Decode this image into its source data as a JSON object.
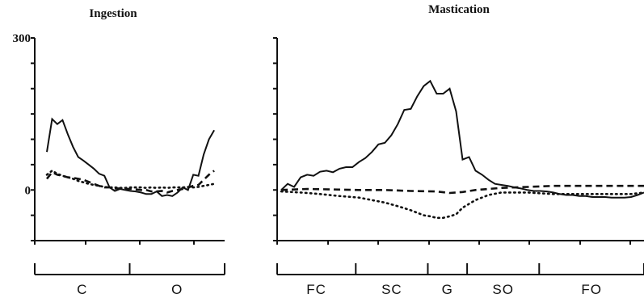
{
  "chart_data": [
    {
      "type": "line",
      "title": "Ingestion",
      "yticks": [
        {
          "value": 300,
          "label": "300"
        },
        {
          "value": 0,
          "label": "0"
        }
      ],
      "ylim": [
        -100,
        300
      ],
      "xlim": [
        0,
        34
      ],
      "phases": [
        {
          "label": "C",
          "start": 0,
          "end": 17
        },
        {
          "label": "O",
          "start": 17,
          "end": 34
        }
      ],
      "series": [
        {
          "style": "solid",
          "x": [
            0,
            1,
            2,
            3,
            4,
            5,
            6,
            7,
            8,
            9,
            10,
            11,
            12,
            13,
            14,
            15,
            16,
            17,
            18,
            19,
            20,
            21,
            22,
            23,
            24,
            25,
            26,
            27,
            28,
            29,
            30,
            31,
            32
          ],
          "values": [
            75,
            140,
            130,
            138,
            110,
            85,
            65,
            58,
            50,
            42,
            32,
            28,
            5,
            -2,
            2,
            0,
            -2,
            -3,
            -5,
            -8,
            -8,
            -3,
            -12,
            -10,
            -12,
            -5,
            5,
            0,
            30,
            28,
            70,
            100,
            118
          ]
        },
        {
          "style": "dashed",
          "x": [
            0,
            1,
            2,
            3,
            4,
            5,
            6,
            7,
            8,
            9,
            10,
            11,
            12,
            13,
            14,
            15,
            16,
            17,
            18,
            19,
            20,
            21,
            22,
            23,
            24,
            25,
            26,
            27,
            28,
            29,
            30,
            31,
            32
          ],
          "values": [
            22,
            35,
            30,
            28,
            25,
            24,
            22,
            20,
            16,
            12,
            8,
            5,
            5,
            3,
            3,
            2,
            2,
            1,
            0,
            0,
            -3,
            -3,
            -2,
            -5,
            -2,
            0,
            2,
            5,
            8,
            10,
            20,
            30,
            38
          ]
        },
        {
          "style": "dotted",
          "x": [
            0,
            1,
            2,
            3,
            4,
            5,
            6,
            7,
            8,
            9,
            10,
            11,
            12,
            13,
            14,
            15,
            16,
            17,
            18,
            19,
            20,
            21,
            22,
            23,
            24,
            25,
            26,
            27,
            28,
            29,
            30,
            31,
            32
          ],
          "values": [
            30,
            38,
            32,
            28,
            25,
            22,
            18,
            15,
            12,
            10,
            8,
            6,
            5,
            5,
            4,
            4,
            5,
            5,
            5,
            4,
            5,
            4,
            5,
            4,
            5,
            5,
            5,
            6,
            5,
            6,
            8,
            10,
            12
          ]
        }
      ]
    },
    {
      "type": "line",
      "title": "Mastication",
      "yticks": [
        {
          "value": 0,
          "label": ""
        }
      ],
      "ylim": [
        -100,
        300
      ],
      "xlim": [
        0,
        56
      ],
      "phases": [
        {
          "label": "FC",
          "start": 0,
          "end": 12
        },
        {
          "label": "SC",
          "start": 12,
          "end": 23
        },
        {
          "label": "G",
          "start": 23,
          "end": 29
        },
        {
          "label": "SO",
          "start": 29,
          "end": 40
        },
        {
          "label": "FO",
          "start": 40,
          "end": 56
        }
      ],
      "series": [
        {
          "style": "solid",
          "x": [
            0,
            1,
            2,
            3,
            4,
            5,
            6,
            7,
            8,
            9,
            10,
            11,
            12,
            13,
            14,
            15,
            16,
            17,
            18,
            19,
            20,
            21,
            22,
            23,
            24,
            25,
            26,
            27,
            28,
            29,
            30,
            31,
            32,
            33,
            34,
            35,
            36,
            37,
            38,
            39,
            40,
            41,
            42,
            43,
            44,
            45,
            46,
            47,
            48,
            49,
            50,
            51,
            52,
            53,
            54,
            55,
            56
          ],
          "values": [
            0,
            12,
            6,
            25,
            30,
            28,
            36,
            38,
            35,
            42,
            45,
            45,
            55,
            63,
            75,
            90,
            93,
            108,
            130,
            158,
            160,
            185,
            205,
            215,
            190,
            190,
            200,
            155,
            60,
            65,
            38,
            30,
            20,
            12,
            10,
            8,
            5,
            3,
            0,
            -2,
            -2,
            -3,
            -5,
            -8,
            -10,
            -10,
            -12,
            -12,
            -14,
            -14,
            -14,
            -15,
            -15,
            -15,
            -14,
            -10,
            -5
          ]
        },
        {
          "style": "dashed",
          "x": [
            0,
            4,
            8,
            12,
            16,
            20,
            24,
            26,
            28,
            30,
            34,
            38,
            42,
            46,
            50,
            54,
            56
          ],
          "values": [
            0,
            2,
            1,
            0,
            0,
            -2,
            -3,
            -6,
            -4,
            0,
            4,
            6,
            8,
            8,
            8,
            8,
            8
          ]
        },
        {
          "style": "dotted",
          "x": [
            0,
            3,
            6,
            9,
            12,
            14,
            16,
            18,
            20,
            21,
            22,
            23,
            24,
            25,
            26,
            27,
            28,
            30,
            32,
            34,
            38,
            42,
            46,
            50,
            54,
            56
          ],
          "values": [
            -3,
            -5,
            -8,
            -12,
            -15,
            -20,
            -25,
            -32,
            -40,
            -45,
            -50,
            -52,
            -55,
            -55,
            -52,
            -48,
            -35,
            -20,
            -10,
            -5,
            -5,
            -8,
            -8,
            -8,
            -8,
            -5
          ]
        }
      ]
    }
  ]
}
